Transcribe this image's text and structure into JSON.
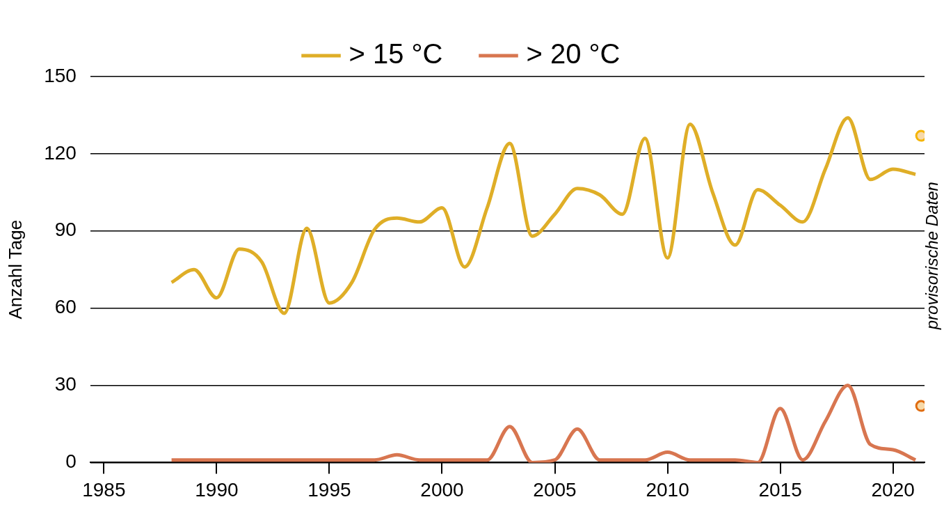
{
  "chart_data": {
    "type": "line",
    "ylabel": "Anzahl Tage",
    "x": [
      1988,
      1989,
      1990,
      1991,
      1992,
      1993,
      1994,
      1995,
      1996,
      1997,
      1998,
      1999,
      2000,
      2001,
      2002,
      2003,
      2004,
      2005,
      2006,
      2007,
      2008,
      2009,
      2010,
      2011,
      2012,
      2013,
      2014,
      2015,
      2016,
      2017,
      2018,
      2019,
      2020,
      2021
    ],
    "series": [
      {
        "name": "> 15 °C",
        "color": "#dfae27",
        "marker": "none",
        "values": [
          70,
          75,
          64,
          83,
          78,
          58,
          91,
          62,
          70,
          90.5,
          95,
          93.5,
          99,
          76,
          99,
          124,
          88,
          96.5,
          106.5,
          104,
          96.5,
          126,
          79.5,
          131.5,
          105,
          84.5,
          106,
          100,
          93.5,
          114,
          134,
          110,
          114,
          112
        ]
      },
      {
        "name": "> 20 °C",
        "color": "#d87650",
        "marker": "none",
        "values": [
          1,
          1,
          1,
          1,
          1,
          1,
          1,
          1,
          1,
          1,
          3,
          1,
          1,
          1,
          1,
          14,
          0,
          1,
          13,
          1,
          1,
          1,
          4,
          1,
          1,
          1,
          0,
          21,
          1,
          16,
          30,
          7,
          5,
          1
        ]
      },
      {
        "type": "scatter",
        "color": "#f5b400",
        "marker": "circle",
        "x": [
          2021.25
        ],
        "values": [
          127
        ]
      },
      {
        "type": "scatter",
        "color": "#e06c10",
        "marker": "circle",
        "x": [
          2021.25
        ],
        "values": [
          22
        ]
      }
    ],
    "xlim": [
      1984.4,
      2021.4
    ],
    "xticks": [
      1985,
      1990,
      1995,
      2000,
      2005,
      2010,
      2015,
      2020
    ],
    "ylim": [
      0,
      150
    ],
    "yticks": [
      0,
      30,
      60,
      90,
      120,
      150
    ],
    "grid": "y",
    "legend": "top",
    "line_style": "solid",
    "annotations": [
      "provisorische Daten"
    ]
  }
}
